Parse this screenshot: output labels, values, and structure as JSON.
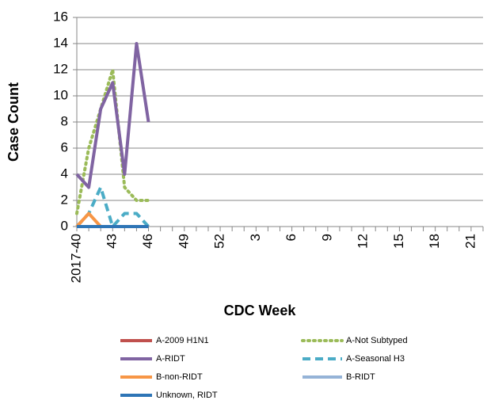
{
  "chart_data": {
    "type": "line",
    "x_label": "CDC Week",
    "y_label": "Case Count",
    "categories": [
      "2017-40",
      null,
      null,
      "43",
      null,
      null,
      "46",
      null,
      null,
      "49",
      null,
      null,
      "52",
      null,
      null,
      "3",
      null,
      null,
      "6",
      null,
      null,
      "9",
      null,
      null,
      "12",
      null,
      null,
      "15",
      null,
      null,
      "18",
      null,
      null,
      "21",
      null
    ],
    "series": [
      {
        "name": "A-2009 H1N1",
        "color": "#c0504d",
        "dash": "solid",
        "values": [
          0,
          0,
          0,
          0,
          0,
          0,
          0,
          null,
          null,
          null,
          null,
          null,
          null,
          null,
          null,
          null,
          null,
          null,
          null,
          null,
          null,
          null,
          null,
          null,
          null,
          null,
          null,
          null,
          null,
          null,
          null,
          null,
          null,
          null,
          null
        ]
      },
      {
        "name": "A-Not Subtyped",
        "color": "#9bbb59",
        "dash": "dot",
        "values": [
          1,
          6,
          9,
          12,
          3,
          2,
          2,
          null,
          null,
          null,
          null,
          null,
          null,
          null,
          null,
          null,
          null,
          null,
          null,
          null,
          null,
          null,
          null,
          null,
          null,
          null,
          null,
          null,
          null,
          null,
          null,
          null,
          null,
          null,
          null
        ]
      },
      {
        "name": "A-RIDT",
        "color": "#8064a2",
        "dash": "solid",
        "values": [
          4,
          3,
          9,
          11,
          4,
          14,
          8,
          null,
          null,
          null,
          null,
          null,
          null,
          null,
          null,
          null,
          null,
          null,
          null,
          null,
          null,
          null,
          null,
          null,
          null,
          null,
          null,
          null,
          null,
          null,
          null,
          null,
          null,
          null,
          null
        ]
      },
      {
        "name": "A-Seasonal H3",
        "color": "#4bacc6",
        "dash": "dash",
        "values": [
          0,
          1,
          3,
          0,
          1,
          1,
          0,
          null,
          null,
          null,
          null,
          null,
          null,
          null,
          null,
          null,
          null,
          null,
          null,
          null,
          null,
          null,
          null,
          null,
          null,
          null,
          null,
          null,
          null,
          null,
          null,
          null,
          null,
          null,
          null
        ]
      },
      {
        "name": "B-non-RIDT",
        "color": "#f79646",
        "dash": "solid",
        "values": [
          0,
          1,
          0,
          0,
          0,
          0,
          0,
          null,
          null,
          null,
          null,
          null,
          null,
          null,
          null,
          null,
          null,
          null,
          null,
          null,
          null,
          null,
          null,
          null,
          null,
          null,
          null,
          null,
          null,
          null,
          null,
          null,
          null,
          null,
          null
        ]
      },
      {
        "name": "B-RIDT",
        "color": "#95b3d7",
        "dash": "solid",
        "values": [
          0,
          0,
          0,
          0,
          0,
          0,
          0,
          null,
          null,
          null,
          null,
          null,
          null,
          null,
          null,
          null,
          null,
          null,
          null,
          null,
          null,
          null,
          null,
          null,
          null,
          null,
          null,
          null,
          null,
          null,
          null,
          null,
          null,
          null,
          null
        ]
      },
      {
        "name": "Unknown, RIDT",
        "color": "#2e75b6",
        "dash": "solid",
        "values": [
          0,
          0,
          0,
          0,
          0,
          0,
          0,
          null,
          null,
          null,
          null,
          null,
          null,
          null,
          null,
          null,
          null,
          null,
          null,
          null,
          null,
          null,
          null,
          null,
          null,
          null,
          null,
          null,
          null,
          null,
          null,
          null,
          null,
          null,
          null
        ]
      }
    ],
    "ylim": [
      0,
      16
    ],
    "yticks": [
      0,
      2,
      4,
      6,
      8,
      10,
      12,
      14,
      16
    ],
    "grid": true,
    "legend": "bottom"
  }
}
